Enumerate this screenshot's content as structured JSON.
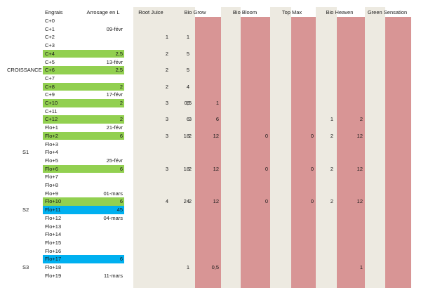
{
  "headers": {
    "engrais": "Engrais",
    "arrosage": "Arrosage en L",
    "products": [
      "Root Juice",
      "Bio Grow",
      "Bio Bloom",
      "Top Max",
      "Bio Heaven",
      "Green Sensation"
    ]
  },
  "colors": {
    "green": "#92d050",
    "blue": "#00b0f0",
    "beige": "#edeae1",
    "pink": "#d89595"
  },
  "sections": [
    {
      "label": "CROISSANCE",
      "row": 6
    },
    {
      "label": "S1",
      "row": 16
    },
    {
      "label": "S2",
      "row": 23
    },
    {
      "label": "S3",
      "row": 30
    }
  ],
  "rows": [
    {
      "label": "C+0",
      "water": "",
      "hl": ""
    },
    {
      "label": "C+1",
      "water": "09-févr",
      "hl": ""
    },
    {
      "label": "C+2",
      "water": "",
      "hl": "",
      "cells": [
        [
          "1",
          "1"
        ]
      ]
    },
    {
      "label": "C+3",
      "water": "",
      "hl": ""
    },
    {
      "label": "C+4",
      "water": "2,5",
      "hl": "green",
      "cells": [
        [
          "2",
          "5"
        ]
      ]
    },
    {
      "label": "C+5",
      "water": "13-févr",
      "hl": ""
    },
    {
      "label": "C+6",
      "water": "2,5",
      "hl": "green",
      "cells": [
        [
          "2",
          "5"
        ]
      ]
    },
    {
      "label": "C+7",
      "water": "",
      "hl": ""
    },
    {
      "label": "C+8",
      "water": "2",
      "hl": "green",
      "cells": [
        [
          "2",
          "4"
        ]
      ]
    },
    {
      "label": "C+9",
      "water": "17-févr",
      "hl": ""
    },
    {
      "label": "C+10",
      "water": "2",
      "hl": "green",
      "cells": [
        [
          "3",
          "6"
        ],
        [
          "0,5",
          "1"
        ]
      ]
    },
    {
      "label": "C+11",
      "water": "",
      "hl": ""
    },
    {
      "label": "C+12",
      "water": "2",
      "hl": "green",
      "cells": [
        [
          "3",
          "6"
        ],
        [
          "3",
          "6"
        ],
        [
          "",
          ""
        ],
        [
          "",
          ""
        ],
        [
          "1",
          "2"
        ]
      ]
    },
    {
      "label": "Flo+1",
      "water": "21-févr",
      "hl": ""
    },
    {
      "label": "Flo+2",
      "water": "6",
      "hl": "green",
      "cells": [
        [
          "3",
          "18"
        ],
        [
          "2",
          "12"
        ],
        [
          "",
          "0"
        ],
        [
          "",
          "0"
        ],
        [
          "2",
          "12"
        ]
      ]
    },
    {
      "label": "Flo+3",
      "water": "",
      "hl": ""
    },
    {
      "label": "Flo+4",
      "water": "",
      "hl": ""
    },
    {
      "label": "Flo+5",
      "water": "25-févr",
      "hl": ""
    },
    {
      "label": "Flo+6",
      "water": "6",
      "hl": "green",
      "cells": [
        [
          "3",
          "18"
        ],
        [
          "2",
          "12"
        ],
        [
          "",
          "0"
        ],
        [
          "",
          "0"
        ],
        [
          "2",
          "12"
        ]
      ]
    },
    {
      "label": "Flo+7",
      "water": "",
      "hl": ""
    },
    {
      "label": "Flo+8",
      "water": "",
      "hl": ""
    },
    {
      "label": "Flo+9",
      "water": "01-mars",
      "hl": ""
    },
    {
      "label": "Flo+10",
      "water": "6",
      "hl": "green",
      "cells": [
        [
          "4",
          "24"
        ],
        [
          "2",
          "12"
        ],
        [
          "",
          "0"
        ],
        [
          "",
          "0"
        ],
        [
          "2",
          "12"
        ]
      ]
    },
    {
      "label": "Flo+11",
      "water": "45",
      "hl": "blue"
    },
    {
      "label": "Flo+12",
      "water": "04-mars",
      "hl": ""
    },
    {
      "label": "Flo+13",
      "water": "",
      "hl": ""
    },
    {
      "label": "Flo+14",
      "water": "",
      "hl": ""
    },
    {
      "label": "Flo+15",
      "water": "",
      "hl": ""
    },
    {
      "label": "Flo+16",
      "water": "",
      "hl": ""
    },
    {
      "label": "Flo+17",
      "water": "6",
      "hl": "blue"
    },
    {
      "label": "Flo+18",
      "water": "",
      "hl": "",
      "cells": [
        [
          "",
          "1"
        ],
        [
          "",
          "0,5"
        ],
        [
          "",
          ""
        ],
        [
          "",
          ""
        ],
        [
          "",
          "1"
        ]
      ]
    },
    {
      "label": "Flo+19",
      "water": "11-mars",
      "hl": ""
    }
  ]
}
